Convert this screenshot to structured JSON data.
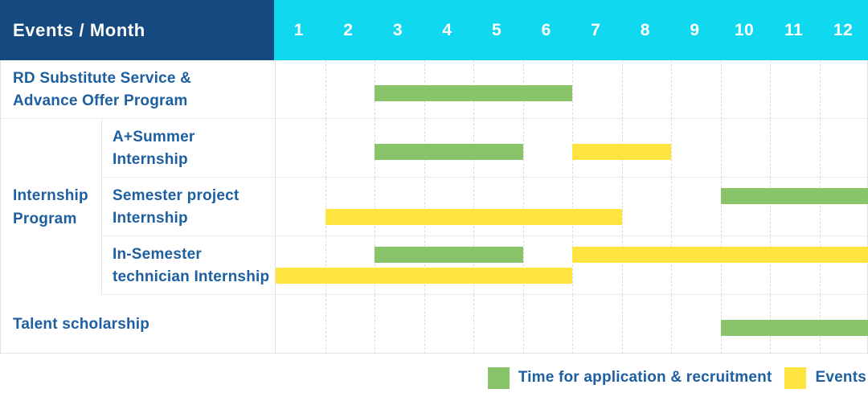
{
  "header": {
    "title": "Events / Month",
    "months": [
      "1",
      "2",
      "3",
      "4",
      "5",
      "6",
      "7",
      "8",
      "9",
      "10",
      "11",
      "12"
    ]
  },
  "group_label_lines": [
    "Internship",
    "Program"
  ],
  "rows": [
    {
      "id": "rd-substitute",
      "grouped": false,
      "label_lines": [
        "RD Substitute Service &",
        "Advance Offer Program"
      ],
      "bars": [
        {
          "color": "green",
          "start_month": 3,
          "end_month": 6,
          "lane": "single"
        }
      ]
    },
    {
      "id": "a-plus-summer-internship",
      "grouped": true,
      "label_lines": [
        "A+Summer",
        "Internship"
      ],
      "bars": [
        {
          "color": "green",
          "start_month": 3,
          "end_month": 5,
          "lane": "single"
        },
        {
          "color": "yellow",
          "start_month": 7,
          "end_month": 8,
          "lane": "single"
        }
      ]
    },
    {
      "id": "semester-project-internship",
      "grouped": true,
      "label_lines": [
        "Semester project",
        "Internship"
      ],
      "bars": [
        {
          "color": "green",
          "start_month": 10,
          "end_month": 12,
          "lane": "upper"
        },
        {
          "color": "yellow",
          "start_month": 2,
          "end_month": 7,
          "lane": "lower"
        }
      ]
    },
    {
      "id": "in-semester-technician-internship",
      "grouped": true,
      "label_lines": [
        "In-Semester",
        "technician Internship"
      ],
      "bars": [
        {
          "color": "green",
          "start_month": 3,
          "end_month": 5,
          "lane": "upper"
        },
        {
          "color": "yellow",
          "start_month": 7,
          "end_month": 12,
          "lane": "upper"
        },
        {
          "color": "yellow",
          "start_month": 1,
          "end_month": 6,
          "lane": "lower"
        }
      ]
    },
    {
      "id": "talent-scholarship",
      "grouped": false,
      "label_lines": [
        "Talent scholarship"
      ],
      "bars": [
        {
          "color": "green",
          "start_month": 10,
          "end_month": 12,
          "lane": "single"
        }
      ]
    }
  ],
  "legend": {
    "items": [
      {
        "key": "green",
        "label": "Time for application & recruitment"
      },
      {
        "key": "yellow",
        "label": "Events"
      }
    ]
  },
  "colors": {
    "header_bg": "#154a80",
    "months_bg": "#0fd8ef",
    "header_text": "#ffffff",
    "label_text": "#1e5fa0",
    "green": "#8ac46a",
    "yellow": "#ffe33e"
  },
  "chart_data": {
    "type": "gantt",
    "title": "Events / Month",
    "x_axis": {
      "label": "Month",
      "ticks": [
        1,
        2,
        3,
        4,
        5,
        6,
        7,
        8,
        9,
        10,
        11,
        12
      ],
      "range": [
        1,
        12
      ]
    },
    "grid": true,
    "legend_position": "bottom-right",
    "rows": [
      {
        "group": null,
        "label": "RD Substitute Service & Advance Offer Program",
        "bars": [
          {
            "series": "Time for application & recruitment",
            "start_month": 3,
            "end_month": 6
          }
        ]
      },
      {
        "group": "Internship Program",
        "label": "A+Summer Internship",
        "bars": [
          {
            "series": "Time for application & recruitment",
            "start_month": 3,
            "end_month": 5
          },
          {
            "series": "Events",
            "start_month": 7,
            "end_month": 8
          }
        ]
      },
      {
        "group": "Internship Program",
        "label": "Semester project Internship",
        "bars": [
          {
            "series": "Time for application & recruitment",
            "start_month": 10,
            "end_month": 12
          },
          {
            "series": "Events",
            "start_month": 2,
            "end_month": 7
          }
        ]
      },
      {
        "group": "Internship Program",
        "label": "In-Semester technician Internship",
        "bars": [
          {
            "series": "Time for application & recruitment",
            "start_month": 3,
            "end_month": 5
          },
          {
            "series": "Events",
            "start_month": 7,
            "end_month": 12
          },
          {
            "series": "Events",
            "start_month": 1,
            "end_month": 6
          }
        ]
      },
      {
        "group": null,
        "label": "Talent scholarship",
        "bars": [
          {
            "series": "Time for application & recruitment",
            "start_month": 10,
            "end_month": 12
          }
        ]
      }
    ],
    "series": [
      {
        "name": "Time for application & recruitment",
        "color": "#8ac46a"
      },
      {
        "name": "Events",
        "color": "#ffe33e"
      }
    ]
  }
}
